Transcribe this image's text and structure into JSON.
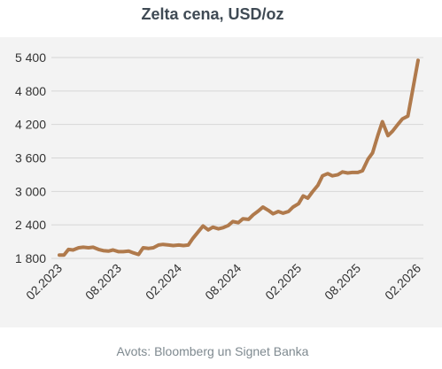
{
  "title": "Zelta cena, USD/oz",
  "source": "Avots: Bloomberg un Signet Banka",
  "colors": {
    "line": "#b07a4c",
    "grid": "#d6d6d6",
    "panel": "#f3f3f3",
    "text": "#333333"
  },
  "chart_data": {
    "type": "line",
    "title": "Zelta cena, USD/oz",
    "xlabel": "",
    "ylabel": "",
    "grid": true,
    "ylim": [
      1800,
      5400
    ],
    "yticks": [
      1800,
      2400,
      3000,
      3600,
      4200,
      4800,
      5400
    ],
    "ytick_labels": [
      "1 800",
      "2 400",
      "3 000",
      "3 600",
      "4 200",
      "4 800",
      "5 400"
    ],
    "xticks": [
      "2023-02",
      "2023-08",
      "2024-02",
      "2024-08",
      "2025-02",
      "2025-08",
      "2026-02"
    ],
    "xtick_labels": [
      "02.2023",
      "08.2023",
      "02.2024",
      "08.2024",
      "02.2025",
      "08.2025",
      "02.2026"
    ],
    "series": [
      {
        "x": [
          "2023-02-01",
          "2023-02-15",
          "2023-03-01",
          "2023-03-15",
          "2023-04-01",
          "2023-04-15",
          "2023-05-01",
          "2023-05-15",
          "2023-06-01",
          "2023-06-15",
          "2023-07-01",
          "2023-07-15",
          "2023-08-01",
          "2023-08-15",
          "2023-09-01",
          "2023-09-15",
          "2023-10-01",
          "2023-10-15",
          "2023-11-01",
          "2023-11-15",
          "2023-12-01",
          "2023-12-15",
          "2024-01-01",
          "2024-01-15",
          "2024-02-01",
          "2024-02-15",
          "2024-03-01",
          "2024-03-15",
          "2024-04-01",
          "2024-04-15",
          "2024-05-01",
          "2024-05-15",
          "2024-06-01",
          "2024-06-15",
          "2024-07-01",
          "2024-07-15",
          "2024-08-01",
          "2024-08-15",
          "2024-09-01",
          "2024-09-15",
          "2024-10-01",
          "2024-10-15",
          "2024-11-01",
          "2024-11-15",
          "2024-12-01",
          "2024-12-15",
          "2025-01-01",
          "2025-01-15",
          "2025-02-01",
          "2025-02-15",
          "2025-03-01",
          "2025-03-15",
          "2025-04-01",
          "2025-04-15",
          "2025-05-01",
          "2025-05-15",
          "2025-06-01",
          "2025-06-15",
          "2025-07-01",
          "2025-07-15",
          "2025-08-01",
          "2025-08-15",
          "2025-09-01",
          "2025-09-15",
          "2025-10-01",
          "2025-10-15",
          "2025-11-01",
          "2025-11-15",
          "2025-12-01",
          "2025-12-15",
          "2026-01-01",
          "2026-01-15",
          "2026-02-01"
        ],
        "values": [
          1860,
          1860,
          1960,
          1950,
          1990,
          2000,
          1990,
          2000,
          1960,
          1940,
          1930,
          1950,
          1920,
          1920,
          1930,
          1900,
          1870,
          1990,
          1980,
          1990,
          2040,
          2050,
          2040,
          2030,
          2040,
          2030,
          2040,
          2160,
          2280,
          2380,
          2310,
          2360,
          2330,
          2350,
          2390,
          2460,
          2440,
          2510,
          2500,
          2580,
          2650,
          2720,
          2660,
          2600,
          2640,
          2610,
          2640,
          2720,
          2780,
          2920,
          2880,
          2990,
          3110,
          3280,
          3320,
          3280,
          3300,
          3350,
          3330,
          3340,
          3340,
          3370,
          3580,
          3690,
          4000,
          4250,
          4000,
          4080,
          4200,
          4300,
          4350,
          4800,
          5350
        ]
      }
    ]
  }
}
